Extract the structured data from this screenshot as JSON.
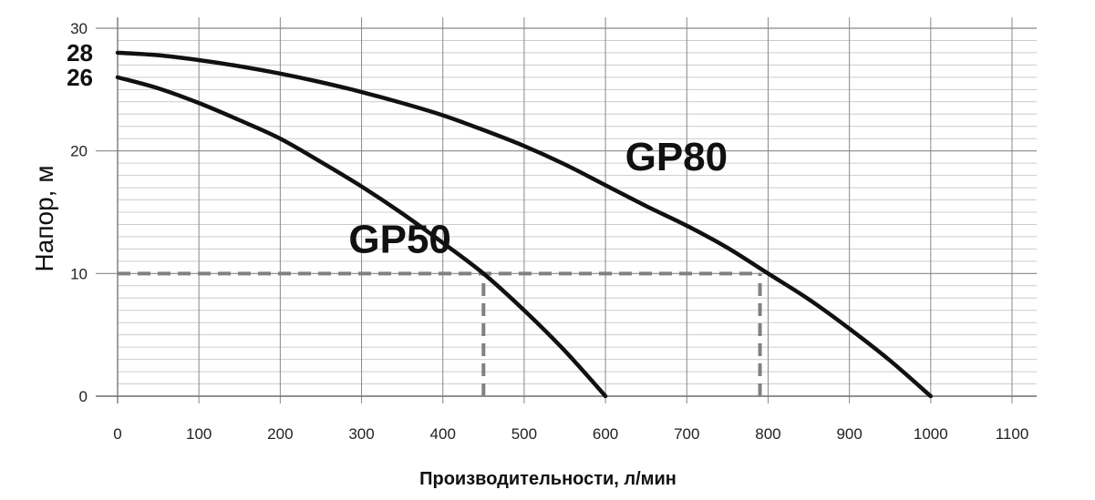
{
  "chart_data": {
    "type": "line",
    "xlabel": "Производительности, л/мин",
    "ylabel": "Напор, м",
    "xlim": [
      0,
      1100
    ],
    "ylim": [
      0,
      30
    ],
    "x_ticks": [
      "0",
      "100",
      "200",
      "300",
      "400",
      "500",
      "600",
      "700",
      "800",
      "900",
      "1000",
      "1100"
    ],
    "y_ticks": [
      "0",
      "10",
      "20",
      "30"
    ],
    "y_highlight_ticks": [
      {
        "label": "28",
        "value": 28
      },
      {
        "label": "26",
        "value": 26
      }
    ],
    "grid": true,
    "minor_grid_step_y": 1,
    "series": [
      {
        "name": "GP50",
        "x": [
          0,
          50,
          100,
          150,
          200,
          250,
          300,
          350,
          400,
          450,
          500,
          550,
          600
        ],
        "y": [
          26,
          25.1,
          23.9,
          22.5,
          21,
          19.1,
          17.1,
          14.9,
          12.5,
          10,
          7,
          3.7,
          0
        ]
      },
      {
        "name": "GP80",
        "x": [
          0,
          50,
          100,
          150,
          200,
          250,
          300,
          350,
          400,
          450,
          500,
          550,
          600,
          650,
          700,
          750,
          800,
          850,
          900,
          950,
          1000
        ],
        "y": [
          28,
          27.8,
          27.4,
          26.9,
          26.3,
          25.6,
          24.8,
          23.9,
          22.9,
          21.7,
          20.4,
          18.9,
          17.2,
          15.5,
          13.9,
          12.1,
          10,
          7.9,
          5.5,
          2.9,
          0
        ]
      }
    ],
    "annotations": [
      {
        "type": "hline-dashed",
        "y": 10,
        "x_from": 0,
        "x_to": 790
      },
      {
        "type": "vline-dashed",
        "x": 450,
        "y_from": 0,
        "y_to": 10
      },
      {
        "type": "vline-dashed",
        "x": 790,
        "y_from": 0,
        "y_to": 10
      }
    ],
    "series_label_positions": [
      {
        "name": "GP50",
        "x": 320,
        "y": 12.9
      },
      {
        "name": "GP80",
        "x": 660,
        "y": 19.6
      }
    ],
    "colors": {
      "curve": "#111111",
      "grid_major": "#888888",
      "grid_minor": "#cccccc",
      "dashed": "#808080"
    }
  }
}
